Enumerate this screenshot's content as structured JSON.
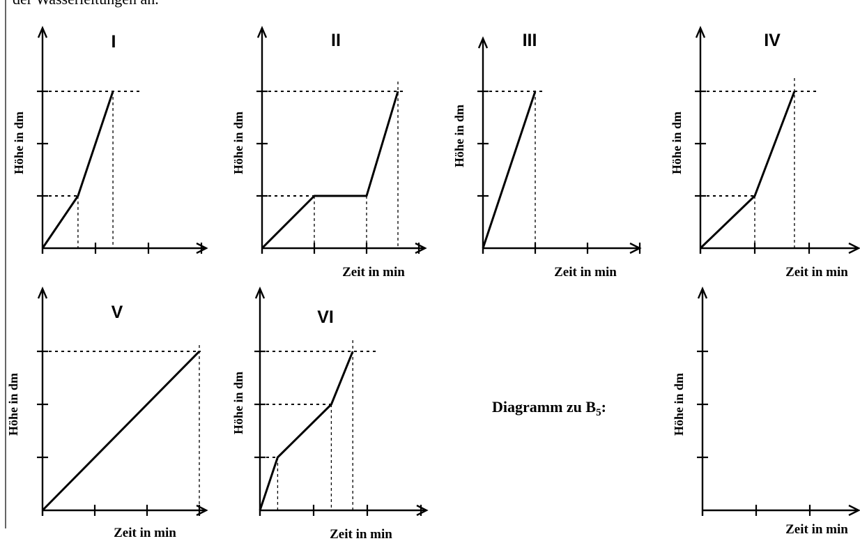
{
  "intro_text_fragment": "der Wasserleitungen an.",
  "caption": {
    "main": "Diagramm zu B",
    "sub": "5",
    "suffix": ":"
  },
  "axis_labels": {
    "y": "Höhe in dm",
    "x": "Zeit in min"
  },
  "chart_data": [
    {
      "type": "line",
      "title": "I",
      "ylabel": "Höhe in dm",
      "xlabel": "",
      "x": [
        0,
        0.67,
        1.33
      ],
      "y": [
        0,
        1,
        3
      ],
      "xticks": 3,
      "yticks": 3,
      "xlim": [
        0,
        3
      ],
      "ylim": [
        0,
        3
      ],
      "reference_lines": "dotted"
    },
    {
      "type": "line",
      "title": "II",
      "ylabel": "Höhe in dm",
      "xlabel": "Zeit in min",
      "x": [
        0,
        1,
        2,
        2.6
      ],
      "y": [
        0,
        1,
        1,
        3
      ],
      "xticks": 3,
      "yticks": 3,
      "xlim": [
        0,
        3
      ],
      "ylim": [
        0,
        3
      ],
      "reference_lines": "dotted"
    },
    {
      "type": "line",
      "title": "III",
      "ylabel": "Höhe in dm",
      "xlabel": "Zeit in min",
      "x": [
        0,
        1
      ],
      "y": [
        0,
        3
      ],
      "xticks": 3,
      "yticks": 3,
      "xlim": [
        0,
        3
      ],
      "ylim": [
        0,
        3
      ],
      "reference_lines": "dotted"
    },
    {
      "type": "line",
      "title": "IV",
      "ylabel": "Höhe in dm",
      "xlabel": "Zeit in min",
      "x": [
        0,
        1,
        1.73
      ],
      "y": [
        0,
        1,
        3
      ],
      "xticks": 3,
      "yticks": 3,
      "xlim": [
        0,
        3
      ],
      "ylim": [
        0,
        3
      ],
      "reference_lines": "dotted"
    },
    {
      "type": "line",
      "title": "V",
      "ylabel": "Höhe in dm",
      "xlabel": "Zeit in min",
      "x": [
        0,
        3
      ],
      "y": [
        0,
        3
      ],
      "xticks": 3,
      "yticks": 3,
      "xlim": [
        0,
        3
      ],
      "ylim": [
        0,
        3
      ],
      "reference_lines": "dotted"
    },
    {
      "type": "line",
      "title": "VI",
      "ylabel": "Höhe in dm",
      "xlabel": "Zeit in min",
      "x": [
        0,
        0.33,
        1.33,
        1.73
      ],
      "y": [
        0,
        1,
        2,
        3
      ],
      "xticks": 3,
      "yticks": 3,
      "xlim": [
        0,
        3
      ],
      "ylim": [
        0,
        3
      ],
      "reference_lines": "dotted"
    },
    {
      "type": "line",
      "title": "",
      "ylabel": "Höhe in dm",
      "xlabel": "Zeit in min",
      "x": [],
      "y": [],
      "xticks": 3,
      "yticks": 3,
      "xlim": [
        0,
        3
      ],
      "ylim": [
        0,
        3
      ],
      "reference_lines": "none"
    }
  ]
}
